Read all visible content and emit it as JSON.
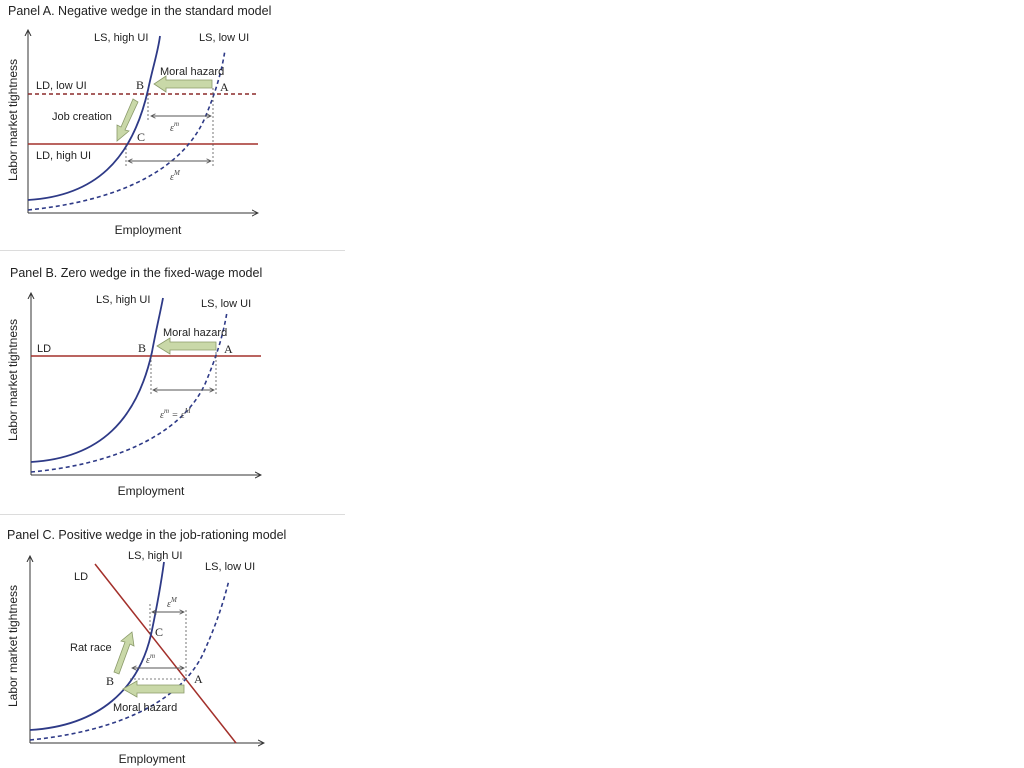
{
  "panel_a": {
    "title": "Panel A. Negative wedge in the standard model",
    "y_axis": "Labor market tightness",
    "x_axis": "Employment",
    "ls_high": "LS, high UI",
    "ls_low": "LS, low UI",
    "ld_low": "LD, low UI",
    "ld_high": "LD, high UI",
    "moral_hazard": "Moral hazard",
    "job_creation": "Job creation",
    "point_a": "A",
    "point_b": "B",
    "point_c": "C",
    "eps_small": "ε",
    "eps_small_sup": "m",
    "eps_big": "ε",
    "eps_big_sup": "M"
  },
  "panel_b": {
    "title": "Panel B. Zero wedge in the fixed-wage model",
    "y_axis": "Labor market tightness",
    "x_axis": "Employment",
    "ls_high": "LS,  high UI",
    "ls_low": "LS, low UI",
    "ld": "LD",
    "moral_hazard": "Moral hazard",
    "point_a": "A",
    "point_b": "B",
    "eps_eq": "ε",
    "eps_eq_sup1": "m",
    "eps_eq_mid": " = ε",
    "eps_eq_sup2": "M"
  },
  "panel_c": {
    "title": "Panel C. Positive wedge in the job-rationing model",
    "y_axis": "Labor market tightness",
    "x_axis": "Employment",
    "ls_high": "LS, high UI",
    "ls_low": "LS, low UI",
    "ld": "LD",
    "rat_race": "Rat race",
    "moral_hazard": "Moral hazard",
    "point_a": "A",
    "point_b": "B",
    "point_c": "C",
    "eps_small": "ε",
    "eps_small_sup": "m",
    "eps_big": "ε",
    "eps_big_sup": "M"
  },
  "colors": {
    "ls_curve": "#2e3a87",
    "ld_line": "#a3302b",
    "ld_dashed": "#8b2a2a",
    "arrow_fill": "#c9d8a8",
    "arrow_stroke": "#8a9a6a",
    "axis": "#333333",
    "guide": "#555555"
  }
}
